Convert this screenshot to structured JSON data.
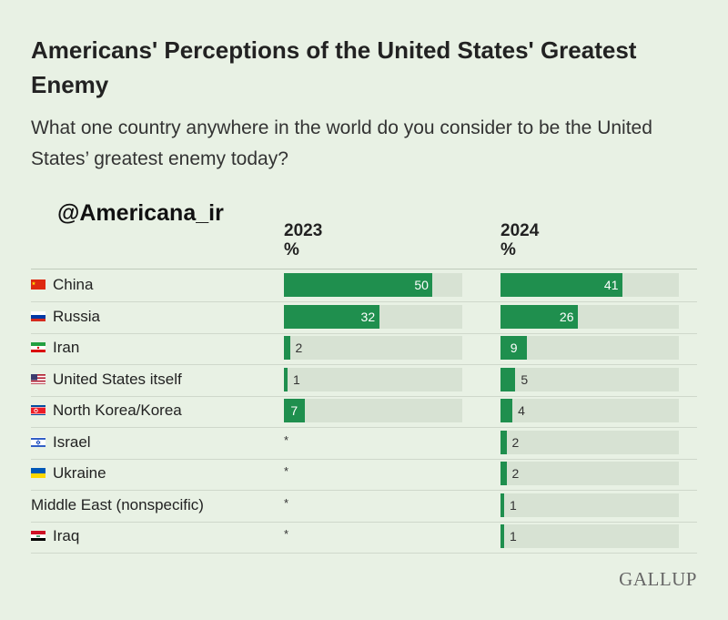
{
  "title": "Americans' Perceptions of the United States' Greatest Enemy",
  "subtitle": "What one country anywhere in the world do you consider to be the United States’ greatest enemy today?",
  "watermark": "@Americana_ir",
  "brand": "GALLUP",
  "colors": {
    "bar": "#1f8f4e",
    "track": "#d7e2d3",
    "background": "#e8f1e4"
  },
  "chart_data": {
    "type": "bar",
    "title": "Americans' Perceptions of the United States' Greatest Enemy",
    "unit": "%",
    "xlim": [
      0,
      60
    ],
    "categories": [
      "China",
      "Russia",
      "Iran",
      "United States itself",
      "North Korea/Korea",
      "Israel",
      "Ukraine",
      "Middle East (nonspecific)",
      "Iraq"
    ],
    "flags": [
      "china-flag-icon",
      "russia-flag-icon",
      "iran-flag-icon",
      "usa-flag-icon",
      "north-korea-flag-icon",
      "israel-flag-icon",
      "ukraine-flag-icon",
      "",
      "iraq-flag-icon"
    ],
    "series": [
      {
        "name": "2023",
        "unit": "%",
        "values": [
          50,
          32,
          2,
          1,
          7,
          null,
          null,
          null,
          null
        ],
        "labels": [
          "50",
          "32",
          "2",
          "1",
          "7",
          "*",
          "*",
          "*",
          "*"
        ]
      },
      {
        "name": "2024",
        "unit": "%",
        "values": [
          41,
          26,
          9,
          5,
          4,
          2,
          2,
          1,
          1
        ],
        "labels": [
          "41",
          "26",
          "9",
          "5",
          "4",
          "2",
          "2",
          "1",
          "1"
        ]
      }
    ]
  }
}
